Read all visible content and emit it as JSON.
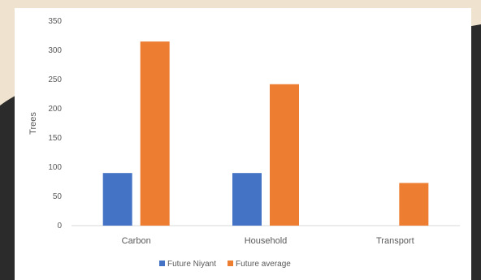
{
  "colors": {
    "future_niyant": "#4472c4",
    "future_average": "#ed7d31"
  },
  "chart_data": {
    "type": "bar",
    "title": "",
    "xlabel": "",
    "ylabel": "Trees",
    "ylim": [
      0,
      350
    ],
    "yticks": [
      0,
      50,
      100,
      150,
      200,
      250,
      300,
      350
    ],
    "categories": [
      "Carbon",
      "Household",
      "Transport"
    ],
    "series": [
      {
        "name": "Future Niyant",
        "values": [
          90,
          90,
          0
        ]
      },
      {
        "name": "Future average",
        "values": [
          315,
          242,
          73
        ]
      }
    ],
    "legend_position": "bottom",
    "grid": false
  }
}
